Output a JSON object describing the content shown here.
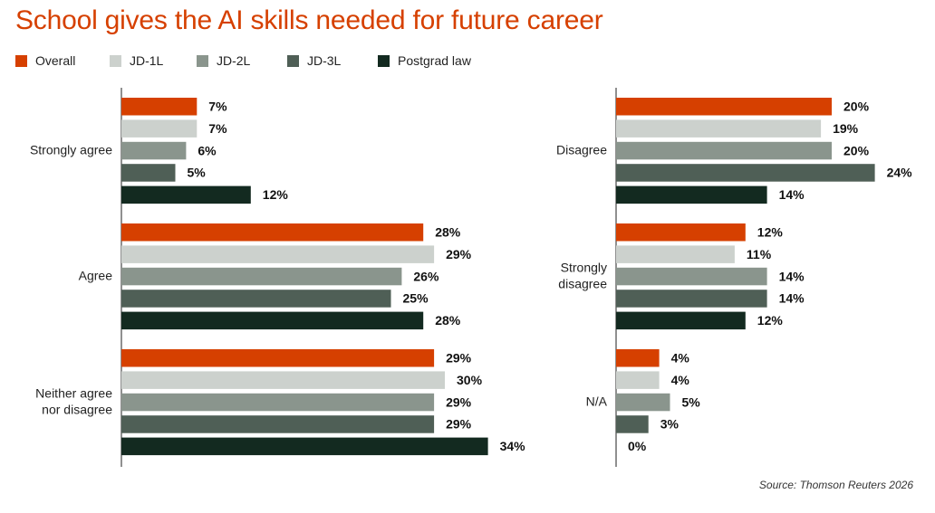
{
  "chart_data": {
    "type": "bar",
    "orientation": "horizontal",
    "title": "School gives the AI skills needed for future career",
    "series": [
      {
        "name": "Overall",
        "color": "#d64000"
      },
      {
        "name": "JD-1L",
        "color": "#ccd1cd"
      },
      {
        "name": "JD-2L",
        "color": "#8a958d"
      },
      {
        "name": "JD-3L",
        "color": "#4f5f56"
      },
      {
        "name": "Postgrad law",
        "color": "#132a20"
      }
    ],
    "panels": [
      {
        "categories": [
          {
            "label": [
              "Strongly agree"
            ],
            "values": [
              7,
              7,
              6,
              5,
              12
            ]
          },
          {
            "label": [
              "Agree"
            ],
            "values": [
              28,
              29,
              26,
              25,
              28
            ]
          },
          {
            "label": [
              "Neither agree",
              "nor disagree"
            ],
            "values": [
              29,
              30,
              29,
              29,
              34
            ]
          }
        ]
      },
      {
        "categories": [
          {
            "label": [
              "Disagree"
            ],
            "values": [
              20,
              19,
              20,
              24,
              14
            ]
          },
          {
            "label": [
              "Strongly",
              "disagree"
            ],
            "values": [
              12,
              11,
              14,
              14,
              12
            ]
          },
          {
            "label": [
              "N/A"
            ],
            "values": [
              4,
              4,
              5,
              3,
              0
            ]
          }
        ]
      }
    ],
    "value_suffix": "%",
    "grid": false,
    "legend_position": "top-left",
    "source": "Source: Thomson Reuters 2026"
  }
}
